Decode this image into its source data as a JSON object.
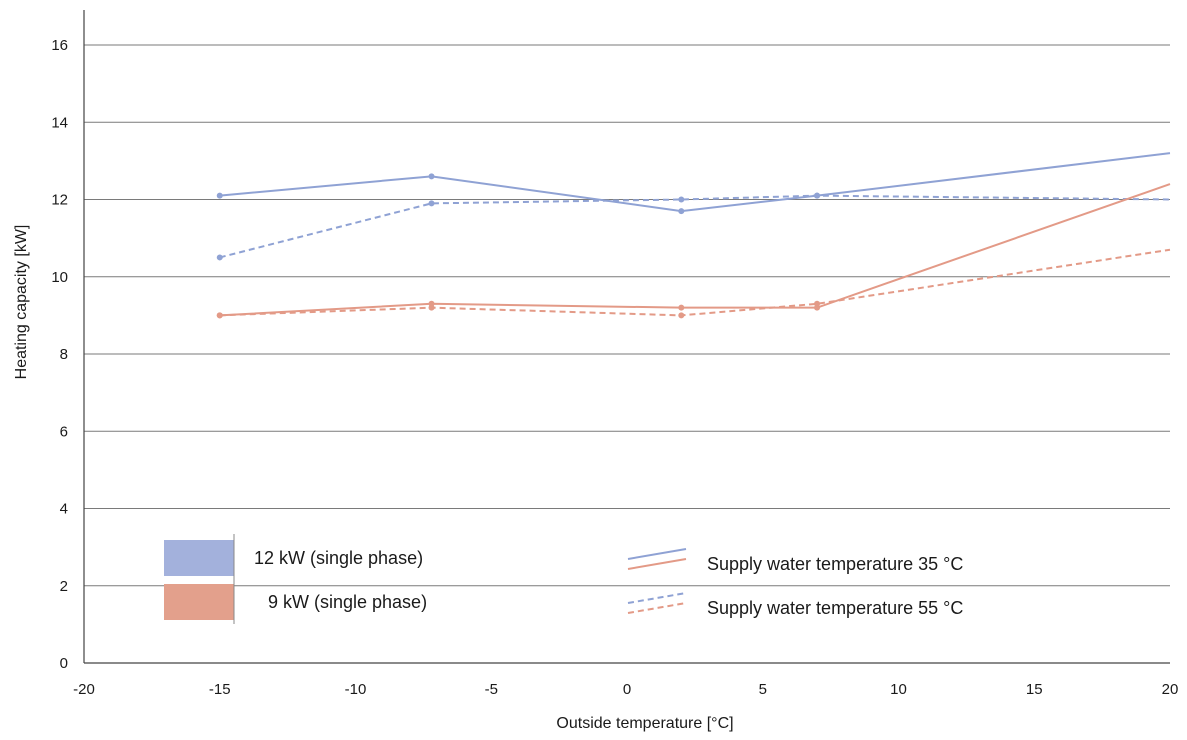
{
  "chart_data": {
    "type": "line",
    "xlabel": "Outside temperature [°C]",
    "ylabel": "Heating capacity [kW]",
    "xlim": [
      -20,
      20
    ],
    "ylim": [
      0,
      17
    ],
    "xticks": [
      -20,
      -15,
      -10,
      -5,
      0,
      5,
      10,
      15,
      20
    ],
    "yticks": [
      0,
      2,
      4,
      6,
      8,
      10,
      12,
      14,
      16
    ],
    "grid": "horizontal",
    "series": [
      {
        "name": "12 kW (single phase)",
        "supply": "Supply water temperature 35 °C",
        "color": "#8fa2d4",
        "dashed": false,
        "x": [
          -15,
          -7.2,
          2,
          7,
          20
        ],
        "y": [
          12.1,
          12.6,
          11.7,
          12.1,
          13.2
        ]
      },
      {
        "name": "12 kW (single phase)",
        "supply": "Supply water temperature 55 °C",
        "color": "#8fa2d4",
        "dashed": true,
        "x": [
          -15,
          -7.2,
          2,
          7,
          20
        ],
        "y": [
          10.5,
          11.9,
          12.0,
          12.1,
          12.0
        ]
      },
      {
        "name": "9 kW (single phase)",
        "supply": "Supply water temperature 35 °C",
        "color": "#e39a87",
        "dashed": false,
        "x": [
          -15,
          -7.2,
          2,
          7,
          20
        ],
        "y": [
          9.0,
          9.3,
          9.2,
          9.2,
          12.4
        ]
      },
      {
        "name": "9 kW (single phase)",
        "supply": "Supply water temperature 55 °C",
        "color": "#e39a87",
        "dashed": true,
        "x": [
          -15,
          -7.2,
          2,
          7,
          20
        ],
        "y": [
          9.0,
          9.2,
          9.0,
          9.3,
          10.7
        ]
      }
    ],
    "legend": {
      "models": [
        {
          "label": "12 kW (single phase)",
          "color": "#a3b1dc"
        },
        {
          "label": "9 kW (single phase)",
          "color": "#e3a08c"
        }
      ],
      "styles": [
        {
          "label": "Supply water temperature 35 °C",
          "dashed": false
        },
        {
          "label": "Supply water temperature 55 °C",
          "dashed": true
        }
      ],
      "colors": {
        "blue": "#8fa2d4",
        "red": "#e39a87"
      }
    }
  }
}
